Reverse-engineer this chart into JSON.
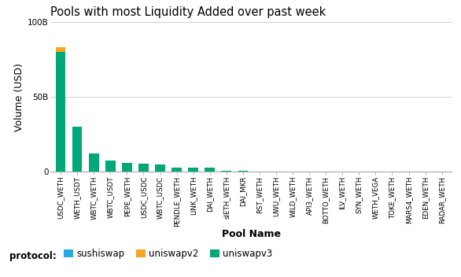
{
  "title": "Pools with most Liquidity Added over past week",
  "xlabel": "Pool Name",
  "ylabel": "Volume (USD)",
  "pools": [
    "USDC_WETH",
    "WETH_USDT",
    "WBTC_WETH",
    "WBTC_USDT",
    "PEPE_WETH",
    "USDC_USDC",
    "WBTC_USDC",
    "PENDLE_WETH",
    "LINK_WETH",
    "DAI_WETH",
    "sIETH_WETH",
    "DAI_MKR",
    "RST_WETH",
    "UWU_WETH",
    "WILD_WETH",
    "API3_WETH",
    "BOTTO_WETH",
    "ILV_WETH",
    "SYN_WETH",
    "WETH_VEGA",
    "TOKE_WETH",
    "MARS4_WETH",
    "EDEN_WETH",
    "RADAR_WETH"
  ],
  "values_uniswapv3": [
    80000000000,
    30000000000,
    12000000000,
    7500000000,
    6000000000,
    5500000000,
    5000000000,
    3000000000,
    2800000000,
    2500000000,
    500000000,
    400000000,
    350000000,
    300000000,
    250000000,
    220000000,
    200000000,
    150000000,
    130000000,
    120000000,
    100000000,
    90000000,
    80000000,
    70000000
  ],
  "values_uniswapv2": [
    3000000000,
    0,
    0,
    0,
    0,
    0,
    0,
    0,
    0,
    0,
    0,
    0,
    0,
    0,
    0,
    0,
    0,
    0,
    0,
    0,
    0,
    0,
    0,
    0
  ],
  "values_sushiswap": [
    0,
    0,
    0,
    0,
    0,
    0,
    0,
    0,
    0,
    0,
    0,
    0,
    0,
    0,
    0,
    0,
    0,
    0,
    0,
    0,
    0,
    0,
    0,
    0
  ],
  "color_uniswapv3": "#00A878",
  "color_uniswapv2": "#F5A623",
  "color_sushiswap": "#29ABE2",
  "ylim_max": 100000000000,
  "yticks": [
    0,
    50000000000,
    100000000000
  ],
  "ytick_labels": [
    "0",
    "50B",
    "100B"
  ],
  "background_color": "#ffffff",
  "grid_color": "#d0d0d0",
  "title_fontsize": 10.5,
  "label_fontsize": 9,
  "tick_fontsize": 7.5
}
